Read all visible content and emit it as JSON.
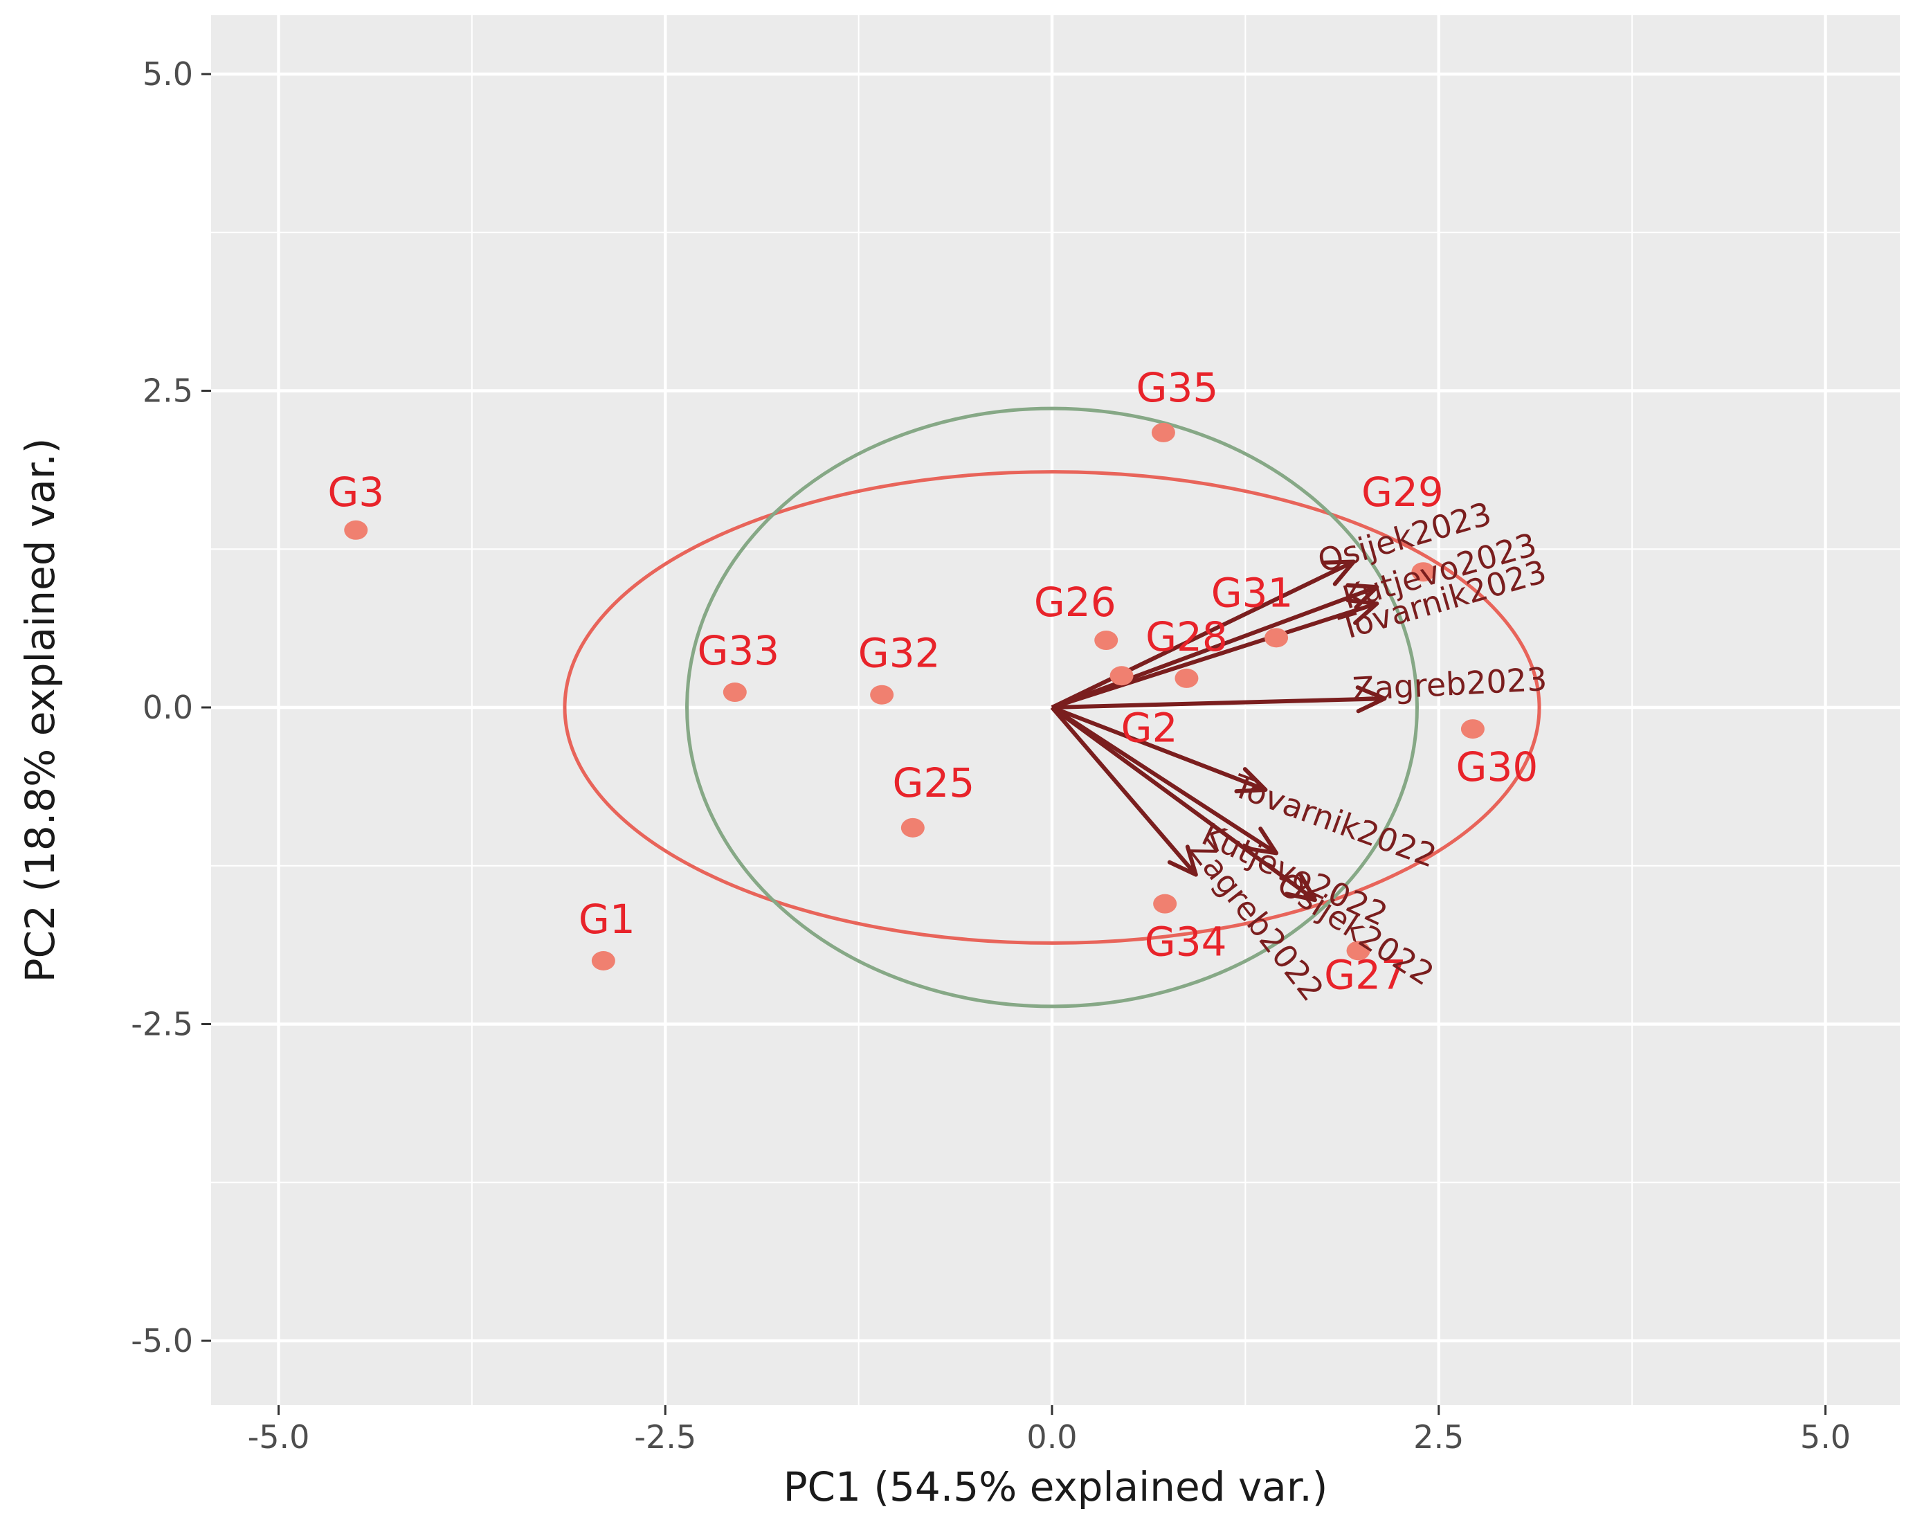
{
  "chart_data": {
    "type": "scatter",
    "subtype": "pca-biplot",
    "xlabel": "PC1 (54.5% explained var.)",
    "ylabel": "PC2 (18.8% explained var.)",
    "xlim": [
      -5.5,
      5.5
    ],
    "ylim": [
      -5.5,
      5.5
    ],
    "xticks": [
      -5.0,
      -2.5,
      0.0,
      2.5,
      5.0
    ],
    "xtick_labels": [
      "-5.0",
      "-2.5",
      "0.0",
      "2.5",
      "5.0"
    ],
    "yticks": [
      5.0,
      2.5,
      0.0,
      -2.5,
      -5.0
    ],
    "ytick_labels": [
      "5.0",
      "2.5",
      "0.0",
      "-2.5",
      "-5.0"
    ],
    "grid": true,
    "colors": {
      "panel": "#ebebeb",
      "grid": "#ffffff",
      "points": "#f08070",
      "point_labels": "#e8232a",
      "arrows": "#7a1e1e",
      "ellipse_group": "#e8645a",
      "circle_correlation": "#86a886"
    },
    "points": [
      {
        "label": "G3",
        "x": -4.5,
        "y": 1.4
      },
      {
        "label": "G1",
        "x": -2.9,
        "y": -2.0
      },
      {
        "label": "G33",
        "x": -2.05,
        "y": 0.12
      },
      {
        "label": "G32",
        "x": -1.1,
        "y": 0.1
      },
      {
        "label": "G25",
        "x": -0.9,
        "y": -0.95
      },
      {
        "label": "G35",
        "x": 0.72,
        "y": 2.17
      },
      {
        "label": "G26",
        "x": 0.35,
        "y": 0.53
      },
      {
        "label": "G28",
        "x": 0.87,
        "y": 0.23
      },
      {
        "label": "G2",
        "x": 0.45,
        "y": 0.25
      },
      {
        "label": "G31",
        "x": 1.45,
        "y": 0.55
      },
      {
        "label": "G29",
        "x": 2.4,
        "y": 1.07
      },
      {
        "label": "G30",
        "x": 2.72,
        "y": -0.17
      },
      {
        "label": "G34",
        "x": 0.73,
        "y": -1.55
      },
      {
        "label": "G27",
        "x": 1.98,
        "y": -1.92
      }
    ],
    "loadings": [
      {
        "label": "Osijek2023",
        "x": 1.95,
        "y": 1.15
      },
      {
        "label": "Kutjevo2023",
        "x": 2.1,
        "y": 0.95
      },
      {
        "label": "Tovarnik2023",
        "x": 2.1,
        "y": 0.82
      },
      {
        "label": "Zagreb2023",
        "x": 2.15,
        "y": 0.07
      },
      {
        "label": "Tovarnik2022",
        "x": 1.38,
        "y": -0.65
      },
      {
        "label": "Kutjevo2022",
        "x": 1.45,
        "y": -1.15
      },
      {
        "label": "Osijek2022",
        "x": 1.7,
        "y": -1.52
      },
      {
        "label": "Zagreb2022",
        "x": 0.93,
        "y": -1.32
      }
    ],
    "ellipse": {
      "cx": 0.0,
      "cy": 0.0,
      "rx": 3.15,
      "ry": 1.86
    },
    "correlation_circle": {
      "cx": 0.0,
      "cy": 0.0,
      "r": 2.36
    }
  }
}
